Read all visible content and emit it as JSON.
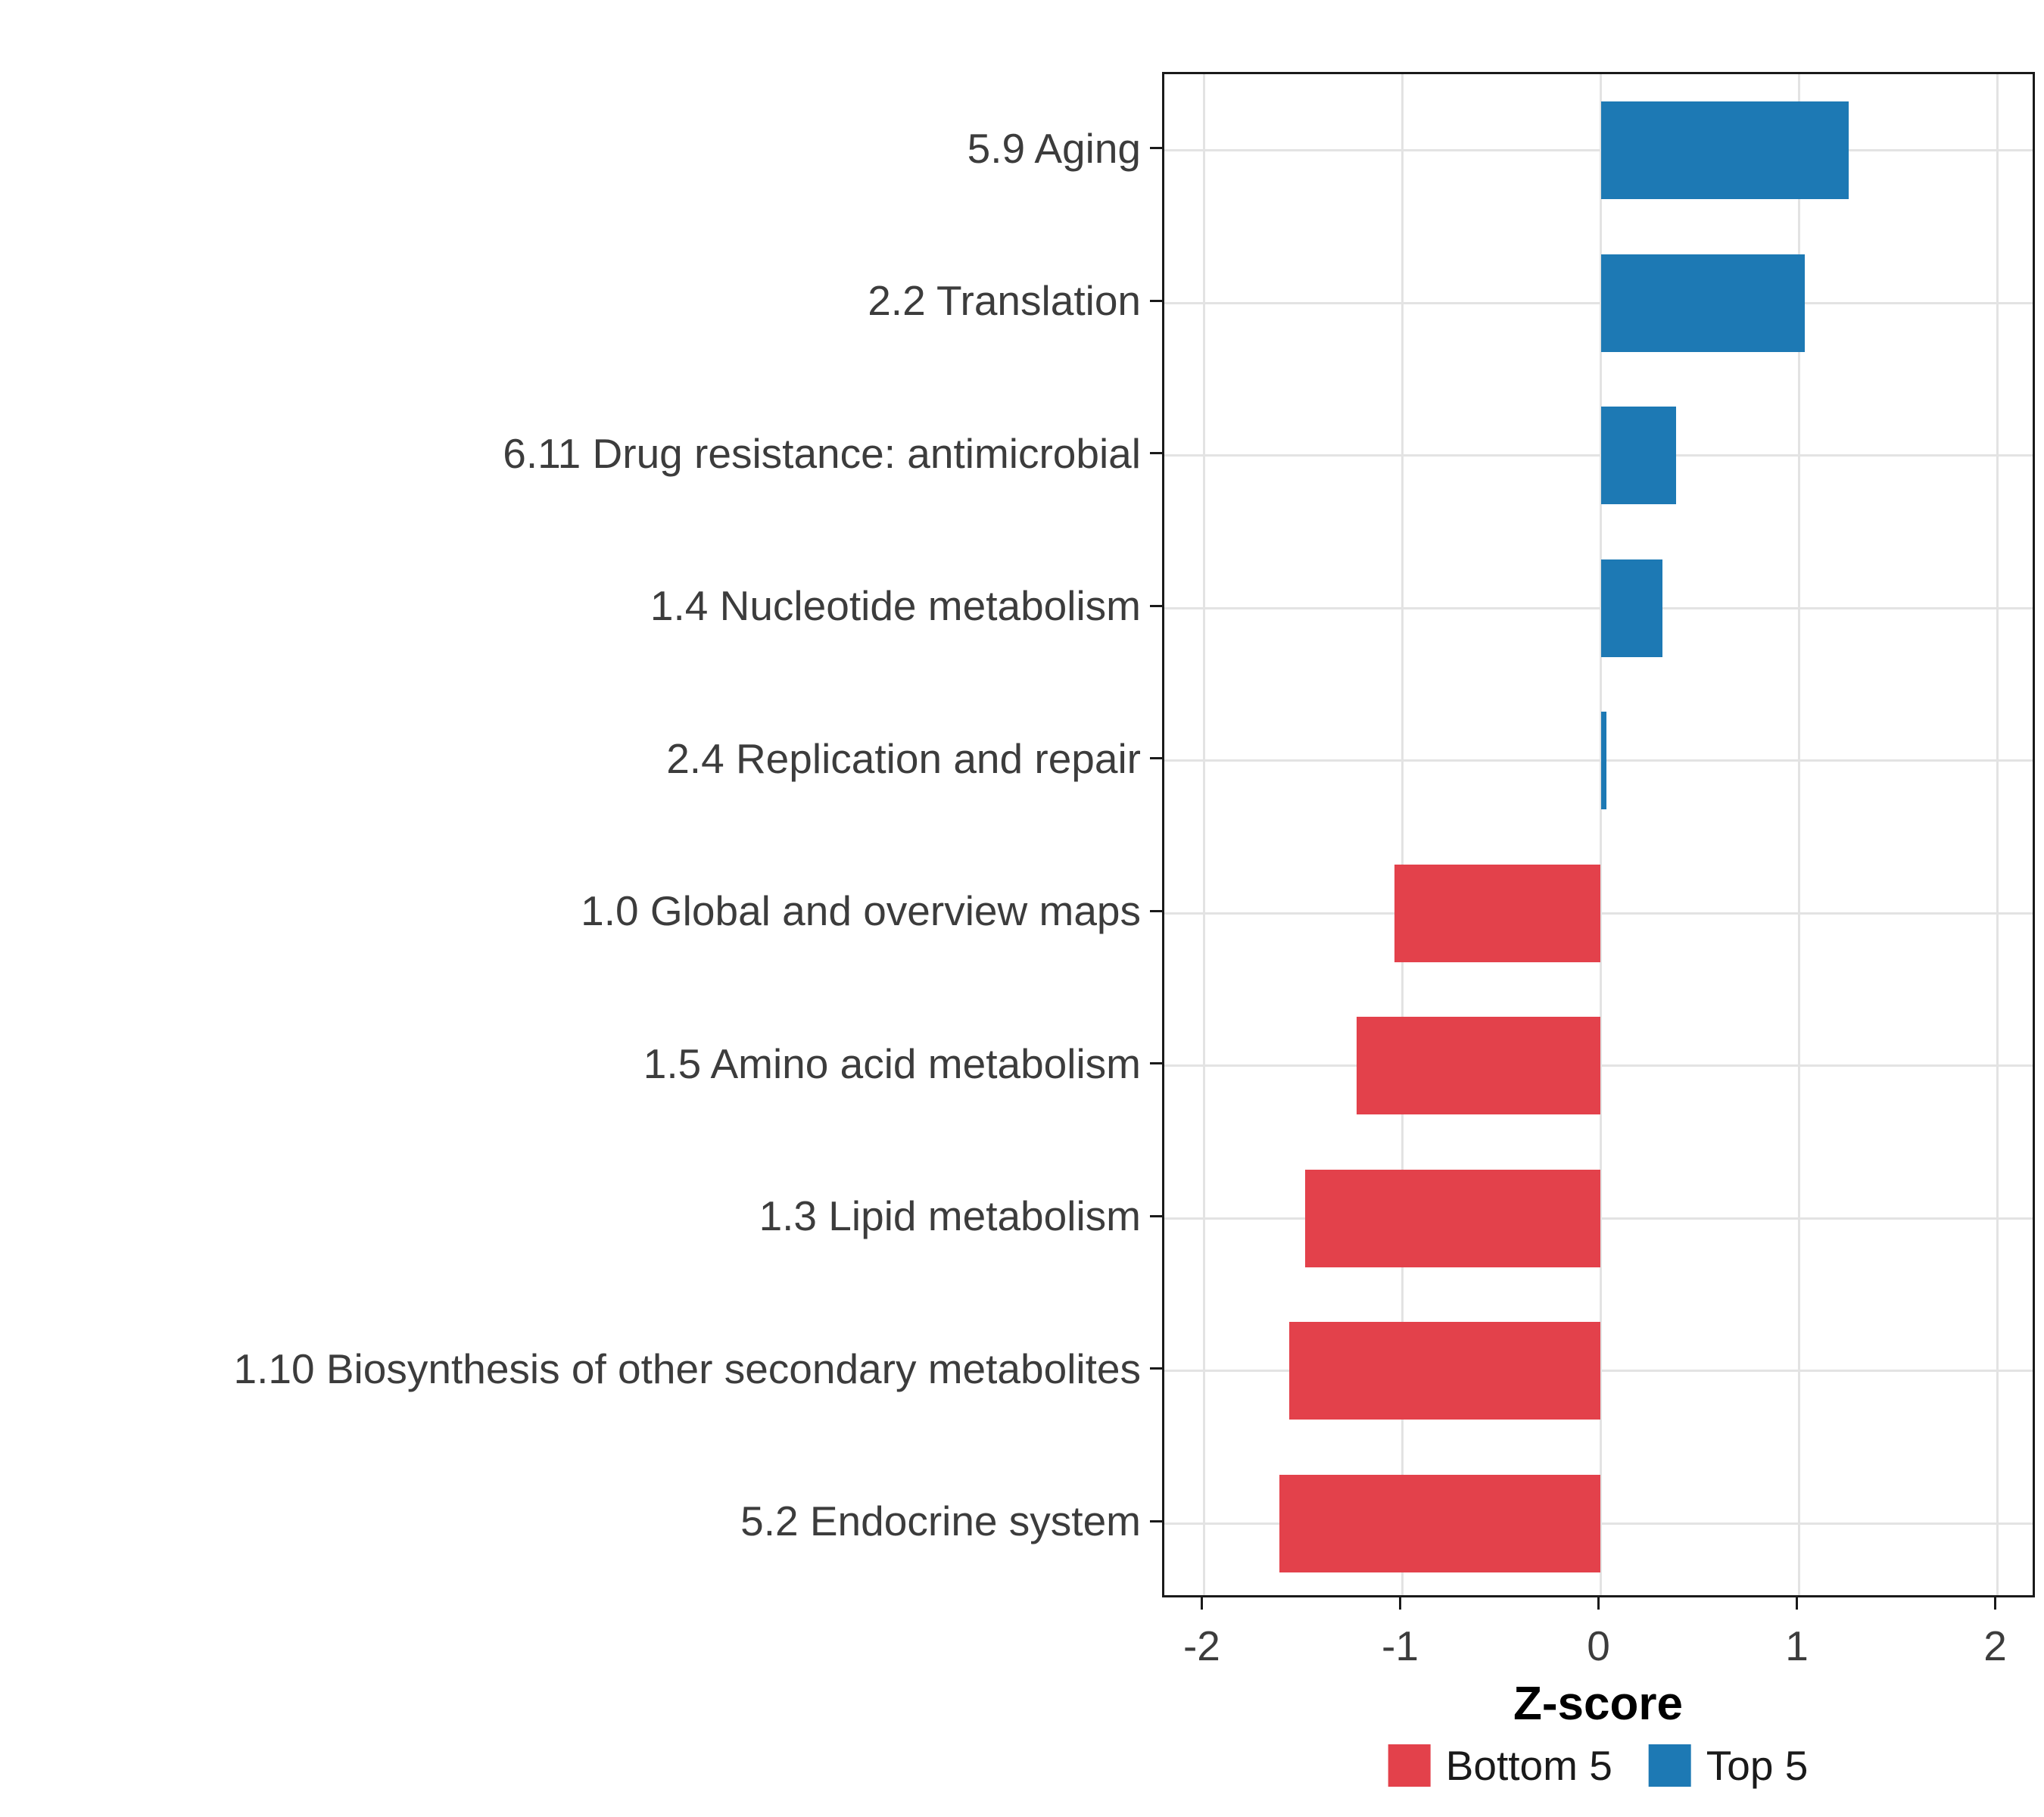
{
  "chart_data": {
    "type": "bar",
    "orientation": "horizontal",
    "title": "",
    "xlabel": "Z-score",
    "ylabel": "",
    "xlim": [
      -2.2,
      2.2
    ],
    "x_ticks": [
      -2,
      -1,
      0,
      1,
      2
    ],
    "x_tick_labels": [
      "-2",
      "-1",
      "0",
      "1",
      "2"
    ],
    "grid": true,
    "categories": [
      "5.9 Aging",
      "2.2 Translation",
      "6.11 Drug resistance: antimicrobial",
      "1.4 Nucleotide metabolism",
      "2.4 Replication and repair",
      "1.0 Global and overview maps",
      "1.5 Amino acid metabolism",
      "1.3 Lipid metabolism",
      "1.10 Biosynthesis of other secondary metabolites",
      "5.2 Endocrine system"
    ],
    "values": [
      1.25,
      1.03,
      0.38,
      0.31,
      0.03,
      -1.04,
      -1.23,
      -1.49,
      -1.57,
      -1.62
    ],
    "series_colors": {
      "positive": "#1d79b4",
      "negative": "#e3414b"
    },
    "legend_position": "bottom",
    "legend": [
      {
        "label": "Bottom 5",
        "color": "#e3414b"
      },
      {
        "label": "Top 5",
        "color": "#1d79b4"
      }
    ]
  }
}
